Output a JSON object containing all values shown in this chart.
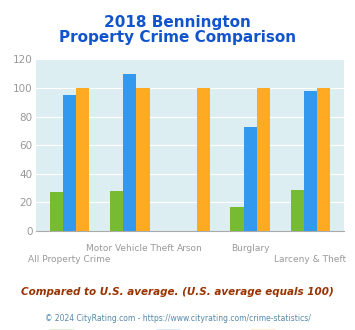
{
  "title_line1": "2018 Bennington",
  "title_line2": "Property Crime Comparison",
  "categories": [
    "All Property Crime",
    "Motor Vehicle Theft",
    "Arson",
    "Burglary",
    "Larceny & Theft"
  ],
  "bennington": [
    27,
    28,
    0,
    17,
    29
  ],
  "nebraska": [
    95,
    110,
    0,
    73,
    98
  ],
  "national": [
    100,
    100,
    100,
    100,
    100
  ],
  "color_bennington": "#77bb33",
  "color_nebraska": "#3399ee",
  "color_national": "#ffaa22",
  "ylim": [
    0,
    120
  ],
  "yticks": [
    0,
    20,
    40,
    60,
    80,
    100,
    120
  ],
  "bg_color": "#ddeef2",
  "title_color": "#1155cc",
  "subtitle_text": "Compared to U.S. average. (U.S. average equals 100)",
  "subtitle_color": "#993300",
  "footer_text": "© 2024 CityRating.com - https://www.cityrating.com/crime-statistics/",
  "footer_color": "#5588aa",
  "label_color": "#999999",
  "bar_width": 0.22
}
